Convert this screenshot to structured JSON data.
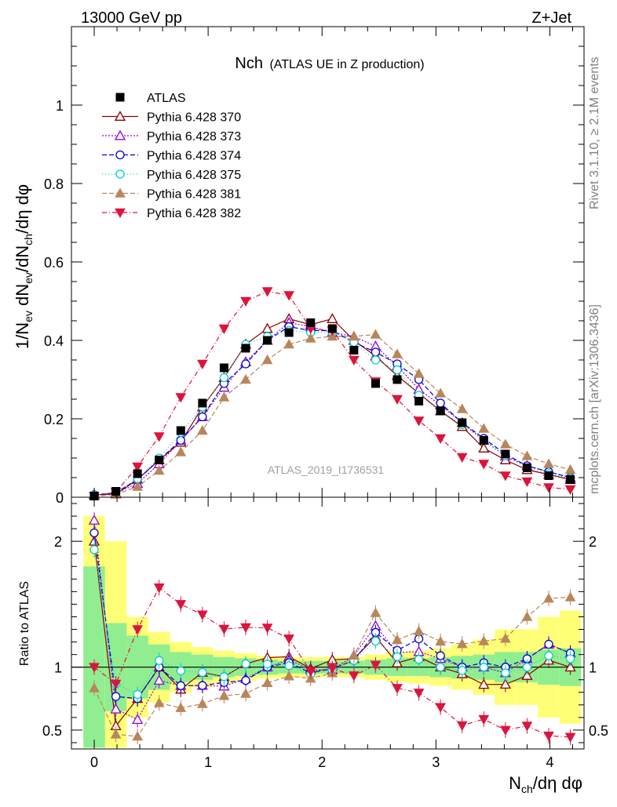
{
  "header": {
    "left": "13000 GeV pp",
    "right": "Z+Jet"
  },
  "side_labels": {
    "rivet": "Rivet 3.1.10, ≥ 2.1M events",
    "source": "mcplots.cern.ch [arXiv:1306.3436]"
  },
  "watermark": "ATLAS_2019_I1736531",
  "chart_data": {
    "type": "line",
    "title_main": "Nch",
    "title_sub": "(ATLAS UE in Z production)",
    "ylabel_top": "1/Nev dNev/dNch/dη dφ",
    "ylabel_bottom": "Ratio to ATLAS",
    "xlabel": "Nch/dη dφ",
    "xlim": [
      -0.2,
      4.3
    ],
    "ylim_top": [
      0,
      1.2
    ],
    "ylim_bottom": [
      0.35,
      2.35
    ],
    "x_ticks": [
      "0",
      "1",
      "2",
      "3",
      "4"
    ],
    "y_ticks_top": [
      "0",
      "0.2",
      "0.4",
      "0.6",
      "0.8",
      "1"
    ],
    "y_ticks_bottom": [
      "0.5",
      "1",
      "2"
    ],
    "legend_position": "top-left",
    "x": [
      0.0,
      0.19,
      0.38,
      0.57,
      0.76,
      0.95,
      1.14,
      1.33,
      1.52,
      1.71,
      1.9,
      2.09,
      2.28,
      2.47,
      2.66,
      2.85,
      3.04,
      3.23,
      3.42,
      3.61,
      3.8,
      3.99,
      4.18
    ],
    "data": {
      "name": "ATLAS",
      "color": "#000000",
      "values": [
        0.003,
        0.015,
        0.06,
        0.095,
        0.17,
        0.24,
        0.33,
        0.38,
        0.4,
        0.42,
        0.445,
        0.43,
        0.375,
        0.29,
        0.3,
        0.245,
        0.22,
        0.19,
        0.145,
        0.11,
        0.075,
        0.055,
        0.045
      ]
    },
    "band_halfwidth_green": [
      0.8,
      0.35,
      0.25,
      0.18,
      0.12,
      0.1,
      0.08,
      0.07,
      0.06,
      0.05,
      0.05,
      0.05,
      0.05,
      0.06,
      0.07,
      0.07,
      0.08,
      0.09,
      0.1,
      0.12,
      0.12,
      0.14,
      0.15
    ],
    "band_halfwidth_yellow": [
      1.2,
      1.0,
      0.4,
      0.28,
      0.2,
      0.16,
      0.13,
      0.11,
      0.09,
      0.08,
      0.08,
      0.08,
      0.08,
      0.1,
      0.12,
      0.13,
      0.15,
      0.18,
      0.22,
      0.3,
      0.3,
      0.4,
      0.45
    ],
    "series": [
      {
        "name": "Pythia 6.428 370",
        "color": "#8b0000",
        "marker": "triangle-open",
        "dash": "",
        "values": [
          0.006,
          0.008,
          0.045,
          0.095,
          0.14,
          0.23,
          0.305,
          0.39,
          0.43,
          0.455,
          0.44,
          0.455,
          0.4,
          0.36,
          0.31,
          0.265,
          0.22,
          0.18,
          0.125,
          0.095,
          0.07,
          0.058,
          0.045
        ]
      },
      {
        "name": "Pythia 6.428 373",
        "color": "#9400d3",
        "marker": "triangle-open",
        "dash": "2,2",
        "values": [
          0.0065,
          0.01,
          0.035,
          0.085,
          0.145,
          0.205,
          0.28,
          0.345,
          0.4,
          0.445,
          0.435,
          0.42,
          0.41,
          0.385,
          0.335,
          0.275,
          0.235,
          0.19,
          0.145,
          0.105,
          0.08,
          0.065,
          0.05
        ]
      },
      {
        "name": "Pythia 6.428 374",
        "color": "#0000cd",
        "marker": "circle-open",
        "dash": "6,3",
        "values": [
          0.0062,
          0.0115,
          0.045,
          0.095,
          0.145,
          0.205,
          0.29,
          0.34,
          0.4,
          0.435,
          0.425,
          0.425,
          0.395,
          0.37,
          0.34,
          0.3,
          0.24,
          0.19,
          0.15,
          0.11,
          0.08,
          0.065,
          0.05
        ]
      },
      {
        "name": "Pythia 6.428 375",
        "color": "#00ced1",
        "marker": "circle-open",
        "dash": "1,3",
        "values": [
          0.0058,
          0.013,
          0.047,
          0.1,
          0.165,
          0.23,
          0.305,
          0.39,
          0.41,
          0.425,
          0.42,
          0.42,
          0.395,
          0.35,
          0.325,
          0.26,
          0.22,
          0.185,
          0.145,
          0.105,
          0.075,
          0.06,
          0.048
        ]
      },
      {
        "name": "Pythia 6.428 381",
        "color": "#b8865b",
        "marker": "triangle-filled",
        "dash": "6,3",
        "values": [
          0.0025,
          0.007,
          0.027,
          0.068,
          0.115,
          0.17,
          0.255,
          0.3,
          0.35,
          0.39,
          0.405,
          0.41,
          0.41,
          0.415,
          0.365,
          0.315,
          0.265,
          0.225,
          0.175,
          0.135,
          0.105,
          0.085,
          0.07
        ]
      },
      {
        "name": "Pythia 6.428 382",
        "color": "#dc143c",
        "marker": "triangle-down-filled",
        "dash": "6,3,1,3",
        "values": [
          0.003,
          0.013,
          0.078,
          0.155,
          0.255,
          0.34,
          0.43,
          0.5,
          0.525,
          0.515,
          0.43,
          0.425,
          0.35,
          0.295,
          0.25,
          0.195,
          0.15,
          0.102,
          0.085,
          0.055,
          0.04,
          0.025,
          0.02
        ]
      }
    ]
  }
}
